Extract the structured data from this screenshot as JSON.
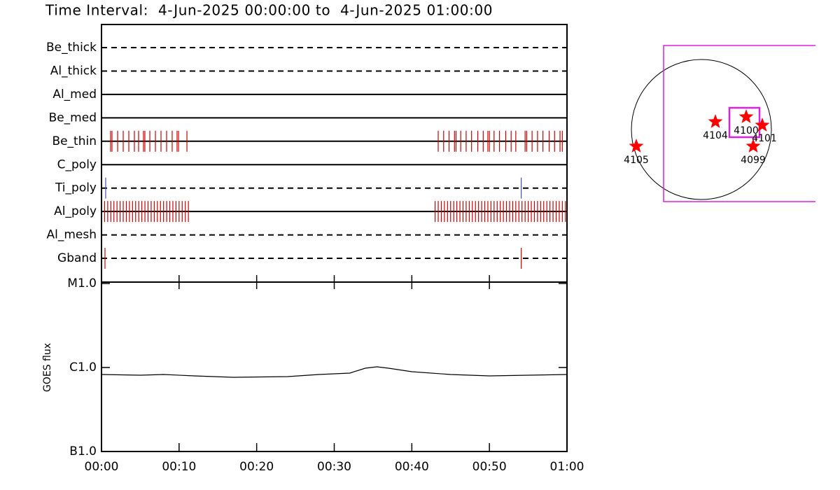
{
  "title": "Time Interval:  4-Jun-2025 00:00:00 to  4-Jun-2025 01:00:00",
  "chart_data": [
    {
      "type": "timeline",
      "xlim": [
        0,
        60
      ],
      "filters": [
        {
          "name": "Be_thick",
          "style": "dashed",
          "color": "#cc0000",
          "times": []
        },
        {
          "name": "Al_thick",
          "style": "dashed",
          "color": "#cc0000",
          "times": []
        },
        {
          "name": "Al_med",
          "style": "solid",
          "color": "#cc0000",
          "times": []
        },
        {
          "name": "Be_med",
          "style": "solid",
          "color": "#cc0000",
          "times": []
        },
        {
          "name": "Be_thin",
          "style": "solid",
          "color": "#cc0000",
          "times": [
            1.17,
            1.35,
            2.08,
            2.8,
            3.52,
            4.24,
            4.78,
            5.41,
            5.59,
            6.23,
            6.95,
            7.67,
            8.39,
            9.11,
            9.74,
            9.93,
            11.01,
            43.4,
            44.1,
            44.8,
            45.5,
            45.7,
            46.3,
            47.0,
            47.7,
            48.5,
            49.2,
            49.8,
            50.0,
            50.6,
            51.3,
            52.1,
            52.8,
            53.4,
            54.6,
            54.8,
            55.5,
            56.2,
            56.9,
            57.7,
            58.4,
            59.1,
            59.4
          ]
        },
        {
          "name": "C_poly",
          "style": "solid",
          "color": "#cc0000",
          "times": []
        },
        {
          "name": "Ti_poly",
          "style": "dashed",
          "color": "#4b4bb0",
          "times": [
            0.54,
            54.1
          ]
        },
        {
          "name": "Al_poly",
          "style": "solid",
          "color": "#cc0000",
          "times": [
            0.4,
            0.8,
            1.2,
            1.6,
            2.0,
            2.4,
            2.8,
            3.2,
            3.6,
            4.0,
            4.4,
            4.8,
            5.2,
            5.6,
            6.0,
            6.4,
            6.8,
            7.2,
            7.6,
            8.0,
            8.4,
            8.8,
            9.2,
            9.6,
            10.0,
            10.4,
            10.8,
            11.2,
            43.0,
            43.4,
            43.8,
            44.2,
            44.6,
            45.0,
            45.4,
            45.8,
            46.2,
            46.6,
            47.0,
            47.4,
            47.8,
            48.2,
            48.6,
            49.0,
            49.4,
            49.8,
            50.2,
            50.6,
            51.0,
            51.4,
            51.8,
            52.2,
            52.6,
            53.0,
            53.4,
            53.8,
            54.2,
            54.6,
            55.0,
            55.4,
            55.8,
            56.2,
            56.6,
            57.0,
            57.4,
            57.8,
            58.2,
            58.6,
            59.0,
            59.4,
            59.8
          ]
        },
        {
          "name": "Al_mesh",
          "style": "dashed",
          "color": "#cc0000",
          "times": []
        },
        {
          "name": "Gband",
          "style": "dashed",
          "color": "#dd0000",
          "times": [
            0.45,
            54.1
          ]
        }
      ]
    },
    {
      "type": "line",
      "ylabel": "GOES flux",
      "log": true,
      "color": "#000000",
      "xlim": [
        0,
        60
      ],
      "ylim": [
        1e-07,
        1e-05
      ],
      "xticks": [
        {
          "value": 0,
          "label": "00:00"
        },
        {
          "value": 10,
          "label": "00:10"
        },
        {
          "value": 20,
          "label": "00:20"
        },
        {
          "value": 30,
          "label": "00:30"
        },
        {
          "value": 40,
          "label": "00:40"
        },
        {
          "value": 50,
          "label": "00:50"
        },
        {
          "value": 60,
          "label": "01:00"
        }
      ],
      "yticks": [
        {
          "value": 1e-07,
          "label": "B1.0"
        },
        {
          "value": 1e-06,
          "label": "C1.0"
        },
        {
          "value": 1e-05,
          "label": "M1.0"
        }
      ],
      "x": [
        0,
        5,
        8,
        12,
        17,
        24,
        28,
        32,
        34,
        35.5,
        37,
        40,
        45,
        50,
        55,
        60
      ],
      "values": [
        8.25e-07,
        8.1e-07,
        8.25e-07,
        7.94e-07,
        7.64e-07,
        7.79e-07,
        8.25e-07,
        8.58e-07,
        9.81e-07,
        1.02e-06,
        9.81e-07,
        8.91e-07,
        8.25e-07,
        7.94e-07,
        8.1e-07,
        8.25e-07
      ]
    }
  ],
  "map": {
    "regions": [
      "4105",
      "4104",
      "4100",
      "4101",
      "4099"
    ]
  }
}
